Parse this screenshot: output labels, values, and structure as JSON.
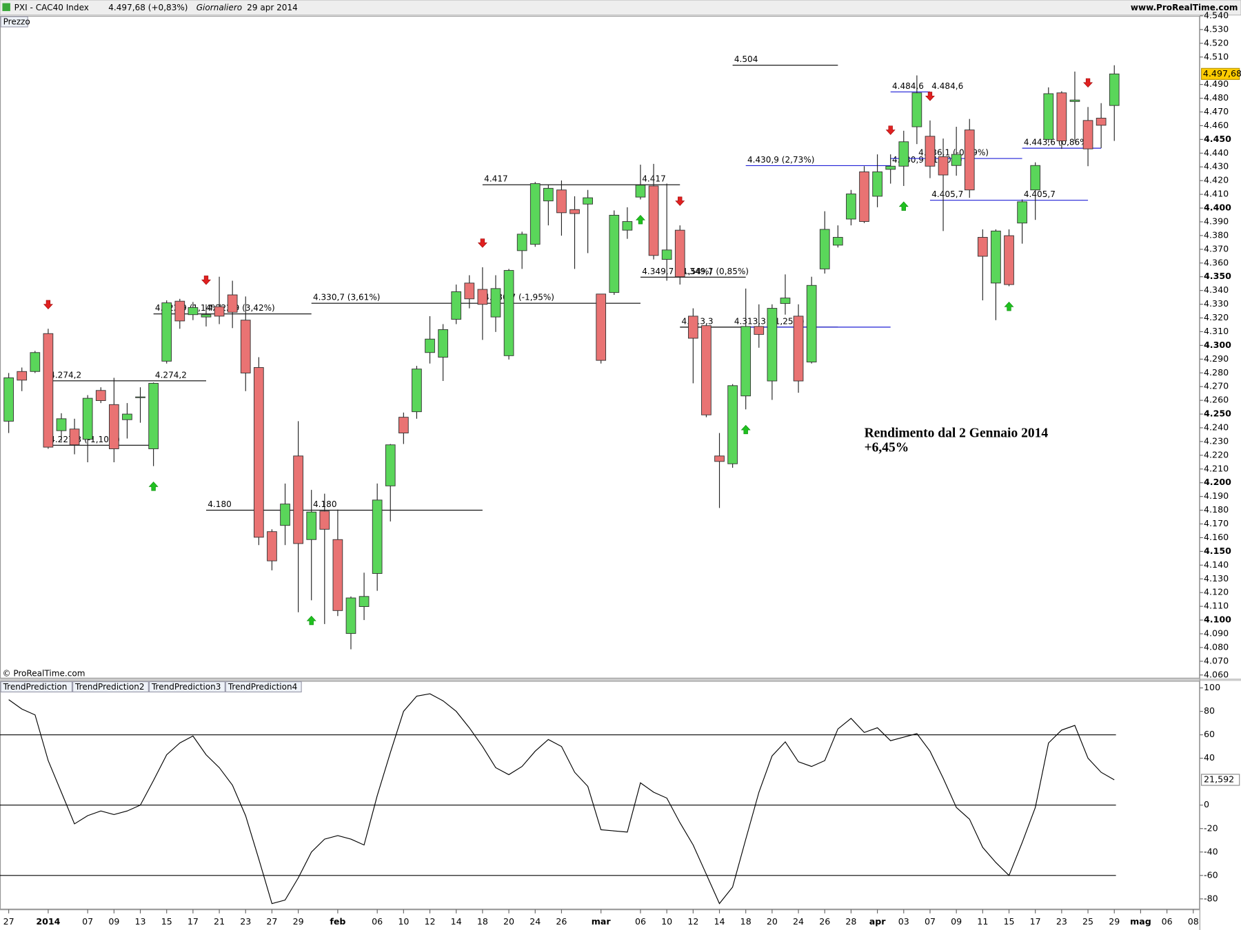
{
  "chart_data": [
    {
      "type": "candlestick",
      "title": "PXI - CAC40 Index",
      "quote": "4.497,68 (+0,83%)",
      "period": "Giornaliero",
      "date": "29 apr 2014",
      "site": "www.ProRealTime.com",
      "pane_label": "Prezzo",
      "copyright": "© ProRealTime.com",
      "annotations": [
        "Rendimento dal 2 Gennaio 2014",
        "+6,45%"
      ],
      "categories": [
        "27",
        null,
        null,
        "2014",
        null,
        null,
        "07",
        null,
        "09",
        null,
        "13",
        null,
        "15",
        null,
        "17",
        null,
        "21",
        null,
        "23",
        null,
        "27",
        null,
        "29",
        null,
        null,
        "feb",
        null,
        null,
        "06",
        null,
        "10",
        null,
        "12",
        null,
        "14",
        null,
        "18",
        null,
        "20",
        null,
        "24",
        null,
        "26",
        null,
        null,
        "mar",
        null,
        null,
        "06",
        null,
        "10",
        null,
        "12",
        null,
        "14",
        null,
        "18",
        null,
        "20",
        null,
        "24",
        null,
        "26",
        null,
        "28",
        null,
        "apr",
        null,
        "03",
        null,
        "07",
        null,
        "09",
        null,
        "11",
        null,
        "15",
        null,
        "17",
        null,
        "23",
        null,
        "25",
        null,
        "29",
        null,
        "mag",
        null,
        "06",
        null,
        "08"
      ],
      "open": [
        4244.8,
        4281.0,
        4281.0,
        4308.6,
        4237.9,
        4239.1,
        4231.6,
        4267.2,
        4256.9,
        4245.9,
        4262.0,
        4224.7,
        4288.5,
        4332.2,
        4322.4,
        4320.7,
        4328.2,
        4336.8,
        4318.4,
        4283.9,
        4164.4,
        4168.9,
        4219.5,
        4158.6,
        4179.3,
        4158.6,
        4090.2,
        4109.8,
        4133.9,
        4197.7,
        4247.7,
        4251.7,
        4294.8,
        4291.4,
        4319.0,
        4345.4,
        4340.8,
        4320.7,
        4292.5,
        4369.0,
        4373.6,
        4405.2,
        4413.2,
        4398.9,
        4402.9,
        4337.4,
        4338.5,
        4383.9,
        4408.0,
        4416.1,
        4362.6,
        4383.9,
        4321.3,
        4314.4,
        4219.5,
        4213.8,
        4263.2,
        4313.8,
        4274.1,
        4330.5,
        4321.3,
        4287.9,
        4355.7,
        4373.0,
        4392.0,
        4426.4,
        4408.6,
        4428.2,
        4430.5,
        4459.2,
        4452.3,
        4437.4,
        4431.0,
        4456.9,
        4378.7,
        4345.4,
        4379.9,
        4389.1,
        4413.2,
        4450.0,
        4483.9,
        4477.6,
        4463.8,
        4465.5,
        4474.7,
        null,
        null,
        null,
        null,
        null,
        null
      ],
      "high": [
        4279.9,
        4283.9,
        4296.0,
        4312.1,
        4250.6,
        4246.6,
        4263.8,
        4269.5,
        4276.4,
        4258.0,
        4269.5,
        4273.0,
        4332.8,
        4333.9,
        4331.6,
        4329.9,
        4350.0,
        4347.1,
        4335.6,
        4291.4,
        4166.1,
        4199.4,
        4244.8,
        4194.8,
        4192.0,
        4180.5,
        4117.2,
        4134.5,
        4199.4,
        4228.2,
        4251.1,
        4285.1,
        4321.3,
        4315.5,
        4344.3,
        4351.1,
        4356.9,
        4351.1,
        4355.7,
        4382.8,
        4419.0,
        4417.2,
        4420.1,
        4408.6,
        4413.2,
        4337.4,
        4398.3,
        4400.6,
        4431.6,
        4432.2,
        4417.8,
        4387.4,
        4327.0,
        4315.5,
        4236.2,
        4271.8,
        4341.4,
        4329.9,
        4329.9,
        4351.7,
        4329.9,
        4350.0,
        4397.7,
        4387.4,
        4413.2,
        4430.5,
        4439.1,
        4439.1,
        4456.3,
        4496.6,
        4463.8,
        4450.6,
        4459.2,
        4464.9,
        4384.5,
        4384.5,
        4384.5,
        4406.3,
        4433.3,
        4487.9,
        4485.1,
        4499.4,
        4473.6,
        4476.4,
        4504.0,
        null,
        null,
        null,
        null,
        null,
        null
      ],
      "low": [
        4236.2,
        4266.7,
        4279.9,
        4224.7,
        4230.5,
        4220.7,
        4214.9,
        4258.0,
        4214.9,
        4232.2,
        4243.7,
        4212.1,
        4286.8,
        4312.1,
        4318.4,
        4313.8,
        4315.5,
        4312.6,
        4266.7,
        4154.6,
        4136.2,
        4154.6,
        4105.7,
        4114.4,
        4097.1,
        4102.9,
        4078.7,
        4100.0,
        4121.3,
        4171.8,
        4228.2,
        4246.6,
        4286.8,
        4274.1,
        4315.5,
        4327.0,
        4304.0,
        4309.8,
        4289.7,
        4355.7,
        4371.8,
        4387.4,
        4379.9,
        4355.7,
        4367.2,
        4286.8,
        4336.8,
        4377.6,
        4406.3,
        4362.6,
        4347.1,
        4344.3,
        4272.4,
        4247.7,
        4181.6,
        4210.9,
        4253.4,
        4298.3,
        4260.3,
        4322.4,
        4265.5,
        4286.8,
        4352.3,
        4371.3,
        4387.4,
        4389.1,
        4400.6,
        4417.8,
        4416.1,
        4446.6,
        4421.8,
        4383.3,
        4423.6,
        4407.5,
        4332.8,
        4318.4,
        4343.1,
        4374.1,
        4391.4,
        4447.7,
        4443.1,
        4448.9,
        4430.5,
        4443.7,
        4448.9,
        null,
        null,
        null,
        null,
        null,
        null
      ],
      "close": [
        4276.4,
        4274.7,
        4294.8,
        4225.9,
        4246.6,
        4227.6,
        4261.5,
        4259.8,
        4224.7,
        4250.0,
        4262.5,
        4272.4,
        4331.0,
        4317.8,
        4327.6,
        4322.4,
        4321.3,
        4324.1,
        4279.9,
        4160.3,
        4143.1,
        4184.5,
        4155.7,
        4178.7,
        4166.1,
        4106.9,
        4116.1,
        4117.2,
        4187.4,
        4227.6,
        4236.2,
        4282.8,
        4304.6,
        4311.5,
        4339.1,
        4333.9,
        4329.9,
        4341.4,
        4354.6,
        4381.0,
        4417.8,
        4414.4,
        4396.6,
        4396.0,
        4407.5,
        4289.1,
        4394.8,
        4390.2,
        4416.7,
        4365.5,
        4369.5,
        4350.0,
        4305.2,
        4249.4,
        4215.5,
        4270.7,
        4313.8,
        4308.0,
        4327.0,
        4334.5,
        4274.1,
        4343.7,
        4384.5,
        4378.7,
        4410.3,
        4390.2,
        4426.4,
        4430.5,
        4448.3,
        4483.9,
        4430.5,
        4424.1,
        4439.1,
        4413.2,
        4364.9,
        4383.3,
        4344.3,
        4404.6,
        4431.0,
        4483.3,
        4448.9,
        4478.7,
        4443.1,
        4460.3,
        4497.68,
        null,
        null,
        null,
        null,
        null,
        null
      ],
      "last_price_label": "4.497,68",
      "up_color": "#5ad65a",
      "down_color": "#e97373",
      "ylim": [
        4058,
        4540
      ],
      "yticks": [
        {
          "value": 4060,
          "label": "4.060"
        },
        {
          "value": 4070,
          "label": "4.070"
        },
        {
          "value": 4080,
          "label": "4.080"
        },
        {
          "value": 4090,
          "label": "4.090"
        },
        {
          "value": 4100,
          "label": "4.100"
        },
        {
          "value": 4110,
          "label": "4.110"
        },
        {
          "value": 4120,
          "label": "4.120"
        },
        {
          "value": 4130,
          "label": "4.130"
        },
        {
          "value": 4140,
          "label": "4.140"
        },
        {
          "value": 4150,
          "label": "4.150"
        },
        {
          "value": 4160,
          "label": "4.160"
        },
        {
          "value": 4170,
          "label": "4.170"
        },
        {
          "value": 4180,
          "label": "4.180"
        },
        {
          "value": 4190,
          "label": "4.190"
        },
        {
          "value": 4200,
          "label": "4.200"
        },
        {
          "value": 4210,
          "label": "4.210"
        },
        {
          "value": 4220,
          "label": "4.220"
        },
        {
          "value": 4230,
          "label": "4.230"
        },
        {
          "value": 4240,
          "label": "4.240"
        },
        {
          "value": 4250,
          "label": "4.250"
        },
        {
          "value": 4260,
          "label": "4.260"
        },
        {
          "value": 4270,
          "label": "4.270"
        },
        {
          "value": 4280,
          "label": "4.280"
        },
        {
          "value": 4290,
          "label": "4.290"
        },
        {
          "value": 4300,
          "label": "4.300"
        },
        {
          "value": 4310,
          "label": "4.310"
        },
        {
          "value": 4320,
          "label": "4.320"
        },
        {
          "value": 4330,
          "label": "4.330"
        },
        {
          "value": 4340,
          "label": "4.340"
        },
        {
          "value": 4350,
          "label": "4.350"
        },
        {
          "value": 4360,
          "label": "4.360"
        },
        {
          "value": 4370,
          "label": "4.370"
        },
        {
          "value": 4380,
          "label": "4.380"
        },
        {
          "value": 4390,
          "label": "4.390"
        },
        {
          "value": 4400,
          "label": "4.400"
        },
        {
          "value": 4410,
          "label": "4.410"
        },
        {
          "value": 4420,
          "label": "4.420"
        },
        {
          "value": 4430,
          "label": "4.430"
        },
        {
          "value": 4440,
          "label": "4.440"
        },
        {
          "value": 4450,
          "label": "4.450"
        },
        {
          "value": 4460,
          "label": "4.460"
        },
        {
          "value": 4470,
          "label": "4.470"
        },
        {
          "value": 4480,
          "label": "4.480"
        },
        {
          "value": 4490,
          "label": "4.490"
        },
        {
          "value": 4510,
          "label": "4.510"
        },
        {
          "value": 4520,
          "label": "4.520"
        },
        {
          "value": 4530,
          "label": "4.530"
        },
        {
          "value": 4540,
          "label": "4.540"
        }
      ],
      "levels": [
        {
          "value": 4504,
          "from": 55,
          "to": 63,
          "color": "#000000",
          "labels": [
            {
              "text": "4.504",
              "at": 55
            }
          ]
        },
        {
          "value": 4417,
          "from": 36,
          "to": 51,
          "color": "#000000",
          "labels": [
            {
              "text": "4.417",
              "at": 36
            },
            {
              "text": "4.417",
              "at": 48
            }
          ]
        },
        {
          "value": 4330.7,
          "from": 23,
          "to": 48,
          "color": "#000000",
          "labels": [
            {
              "text": "4.330,7 (3,61%)",
              "at": 23
            },
            {
              "text": "4.330,7 (-1,95%)",
              "at": 36
            }
          ]
        },
        {
          "value": 4322.9,
          "from": 11,
          "to": 23,
          "color": "#000000",
          "labels": [
            {
              "text": "4.322,9 (1,14%)",
              "at": 11
            },
            {
              "text": "4.322,9 (3,42%)",
              "at": 15
            }
          ]
        },
        {
          "value": 4274.2,
          "from": 3,
          "to": 15,
          "color": "#000000",
          "labels": [
            {
              "text": "4.274,2",
              "at": 3
            },
            {
              "text": "4.274,2",
              "at": 11
            }
          ]
        },
        {
          "value": 4227.3,
          "from": 3,
          "to": 11,
          "color": "#000000",
          "labels": [
            {
              "text": "4.227,3 (-1,10%)",
              "at": 3
            }
          ]
        },
        {
          "value": 4180,
          "from": 15,
          "to": 36,
          "color": "#000000",
          "labels": [
            {
              "text": "4.180",
              "at": 15
            },
            {
              "text": "4.180",
              "at": 23
            }
          ]
        },
        {
          "value": 4349.7,
          "from": 48,
          "to": 56,
          "color": "#000000",
          "labels": [
            {
              "text": "4.349,7 (-1,54%)",
              "at": 48
            },
            {
              "text": "4.349,7 (0,85%)",
              "at": 51
            }
          ]
        },
        {
          "value": 4313.3,
          "from": 51,
          "to": 63,
          "color": "#000000",
          "labels": [
            {
              "text": "4.313,3",
              "at": 51
            },
            {
              "text": "4.313,3 (-1,25%)",
              "at": 55
            }
          ]
        },
        {
          "value": 4313.3,
          "from": 56,
          "to": 67,
          "color": "#1f1fd6",
          "labels": []
        },
        {
          "value": 4430.9,
          "from": 56,
          "to": 67,
          "color": "#1f1fd6",
          "labels": [
            {
              "text": "4.430,9 (2,73%)",
              "at": 56
            },
            {
              "text": "4.430,9 (-1,20%)",
              "at": 67
            }
          ]
        },
        {
          "value": 4436.1,
          "from": 67,
          "to": 77,
          "color": "#1f1fd6",
          "labels": [
            {
              "text": "4.436,1 (-0,69%)",
              "at": 69
            }
          ]
        },
        {
          "value": 4484.6,
          "from": 67,
          "to": 70,
          "color": "#1f1fd6",
          "labels": [
            {
              "text": "4.484,6",
              "at": 67
            },
            {
              "text": "4.484,6",
              "at": 70
            }
          ]
        },
        {
          "value": 4405.7,
          "from": 70,
          "to": 82,
          "color": "#1f1fd6",
          "labels": [
            {
              "text": "4.405,7",
              "at": 70
            },
            {
              "text": "4.405,7",
              "at": 77
            }
          ]
        },
        {
          "value": 4443.6,
          "from": 77,
          "to": 83,
          "color": "#1f1fd6",
          "labels": [
            {
              "text": "4.443,6 (0,86%)",
              "at": 77
            }
          ]
        }
      ],
      "signals": {
        "down": [
          3,
          15,
          36,
          51,
          67,
          70,
          82
        ],
        "up": [
          11,
          23,
          48,
          56,
          68,
          76
        ]
      }
    },
    {
      "type": "line",
      "tabs": [
        "TrendPrediction",
        "TrendPrediction2",
        "TrendPrediction3",
        "TrendPrediction4"
      ],
      "color": "#000000",
      "values": [
        90,
        82,
        77,
        38,
        11,
        -16,
        -9,
        -5,
        -8,
        -5,
        0,
        21,
        43,
        53,
        59,
        43,
        32,
        17,
        -9,
        -46,
        -84,
        -81,
        -62,
        -40,
        -29,
        -26,
        -29,
        -34,
        8,
        45,
        80,
        93,
        95,
        89,
        80,
        66,
        50,
        32,
        26,
        33,
        46,
        56,
        50,
        28,
        16,
        -21,
        -22,
        -23,
        19,
        11,
        6,
        -15,
        -34,
        -59,
        -84,
        -70,
        -29,
        11,
        42,
        54,
        37,
        33,
        38,
        65,
        74,
        62,
        66,
        55,
        58,
        61,
        46,
        23,
        -2,
        -12,
        -36,
        -49,
        -60,
        -32,
        -2,
        53,
        64,
        68,
        40,
        28,
        21.592,
        null,
        null,
        null,
        null,
        null,
        null
      ],
      "last_value_label": "21,592",
      "ylim": [
        -89,
        106
      ],
      "yticks": [
        100,
        80,
        60,
        40,
        0,
        -20,
        -40,
        -60,
        -80
      ],
      "hlines": [
        60,
        0,
        -60
      ]
    }
  ]
}
